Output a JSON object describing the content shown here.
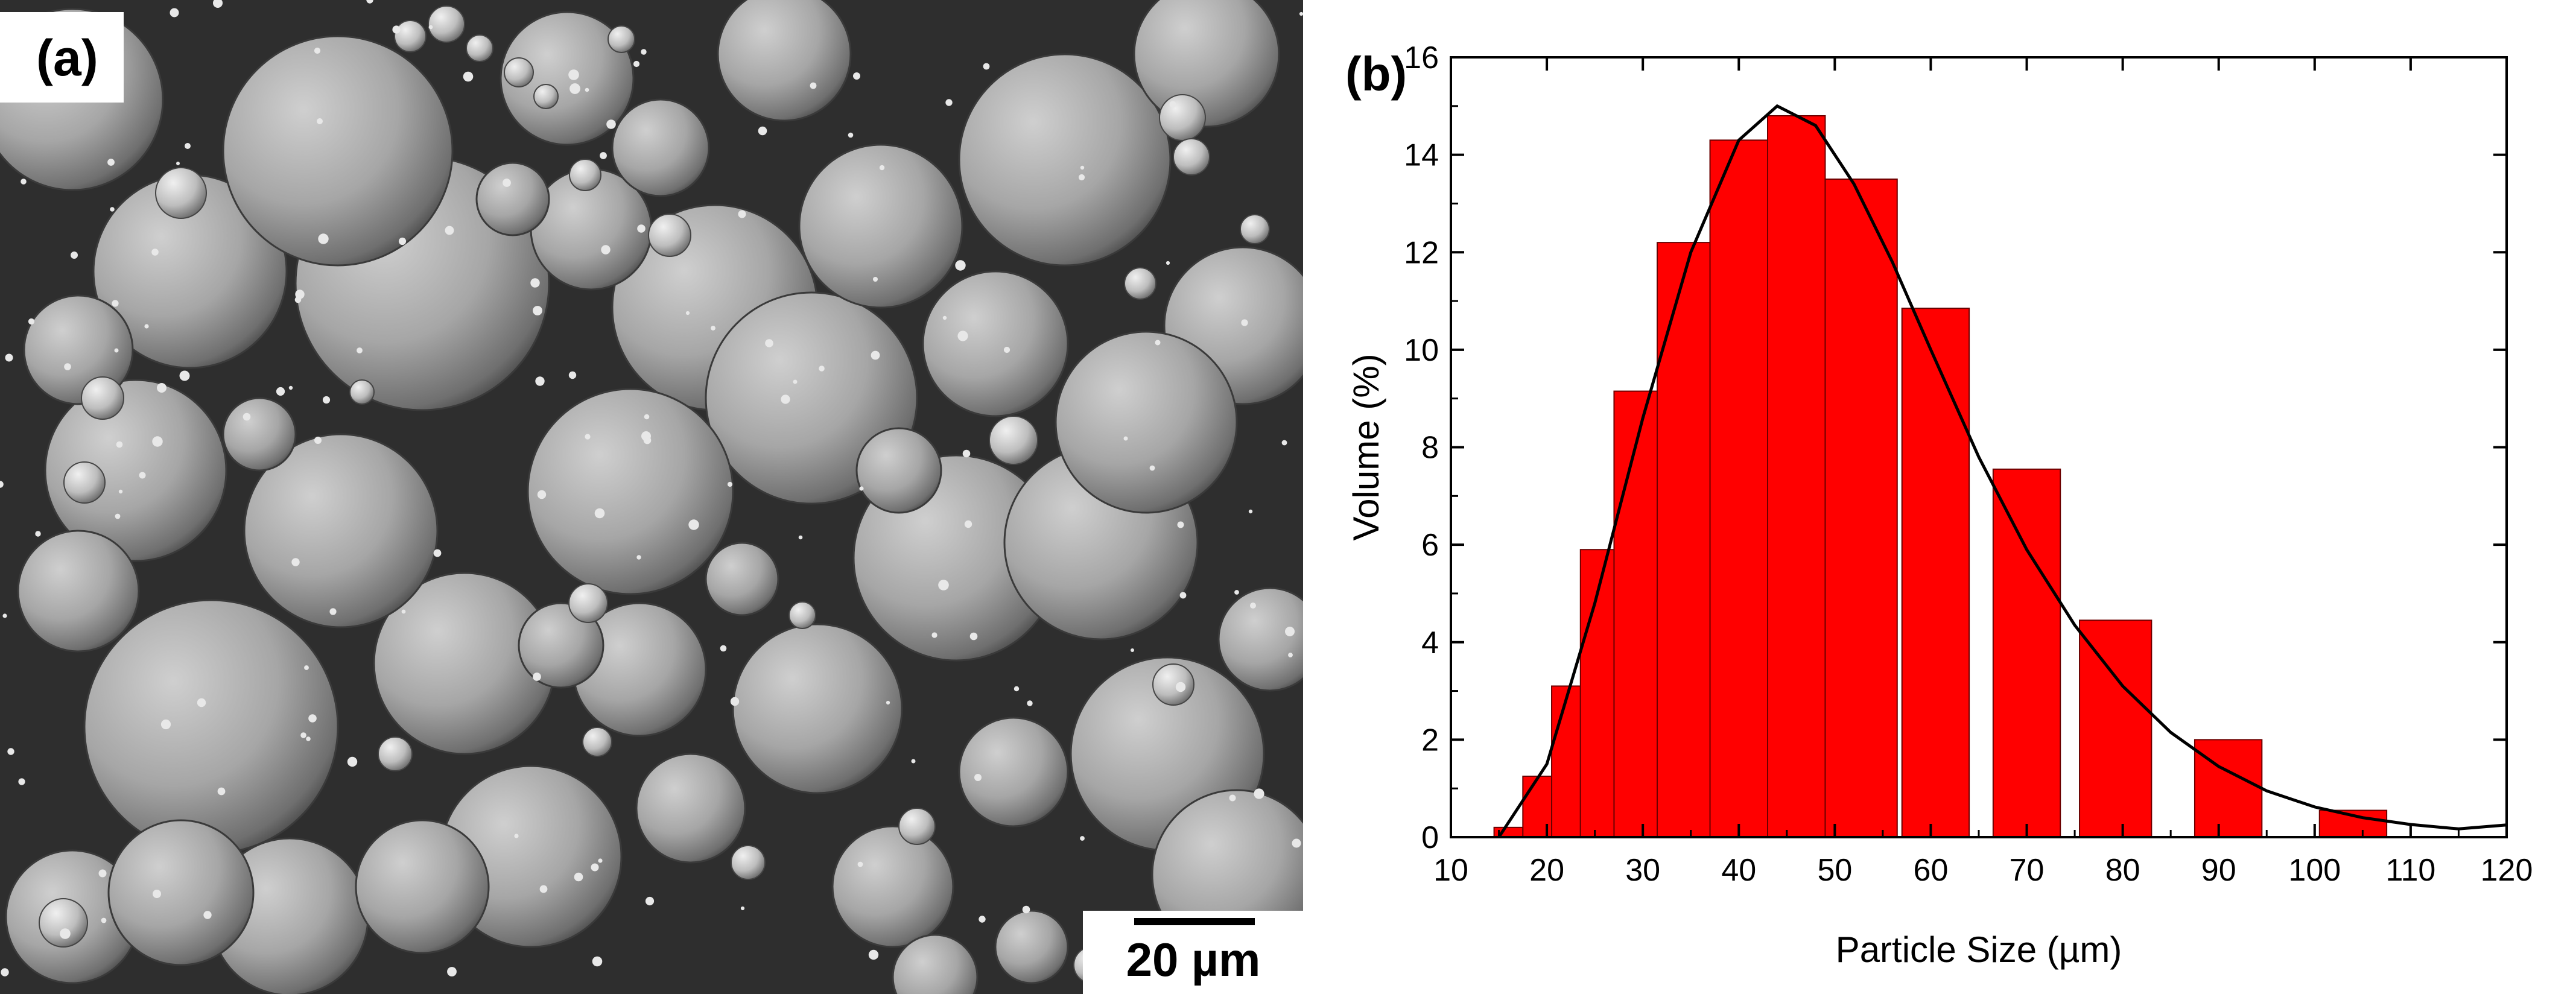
{
  "panel_a": {
    "label": "(a)",
    "scale_bar_label": "20 µm"
  },
  "panel_b": {
    "label": "(b)"
  },
  "colors": {
    "bar_fill": "#ff0000",
    "bar_edge": "#6b0000",
    "curve": "#000000",
    "sem_background": "#2e2e2e"
  },
  "chart_data": {
    "type": "bar",
    "xlabel": "Particle Size (µm)",
    "ylabel": "Volume (%)",
    "xlim": [
      10,
      120
    ],
    "ylim": [
      0,
      16
    ],
    "x_ticks": [
      10,
      20,
      30,
      40,
      50,
      60,
      70,
      80,
      90,
      100,
      110,
      120
    ],
    "y_ticks": [
      0,
      2,
      4,
      6,
      8,
      10,
      12,
      14,
      16
    ],
    "grid": false,
    "legend": "none",
    "bars": [
      {
        "x0": 14.5,
        "x1": 17.5,
        "value": 0.2
      },
      {
        "x0": 17.5,
        "x1": 20.5,
        "value": 1.25
      },
      {
        "x0": 20.5,
        "x1": 23.5,
        "value": 3.1
      },
      {
        "x0": 23.5,
        "x1": 27.0,
        "value": 5.9
      },
      {
        "x0": 27.0,
        "x1": 31.5,
        "value": 9.15
      },
      {
        "x0": 31.5,
        "x1": 37.0,
        "value": 12.2
      },
      {
        "x0": 37.0,
        "x1": 43.0,
        "value": 14.3
      },
      {
        "x0": 43.0,
        "x1": 49.0,
        "value": 14.8
      },
      {
        "x0": 49.0,
        "x1": 56.5,
        "value": 13.5
      },
      {
        "x0": 57.0,
        "x1": 64.0,
        "value": 10.85
      },
      {
        "x0": 66.5,
        "x1": 73.5,
        "value": 7.55
      },
      {
        "x0": 75.5,
        "x1": 83.0,
        "value": 4.45
      },
      {
        "x0": 87.5,
        "x1": 94.5,
        "value": 2.0
      },
      {
        "x0": 100.5,
        "x1": 107.5,
        "value": 0.55
      }
    ],
    "curve": {
      "x": [
        15,
        20,
        25,
        30,
        35,
        40,
        44,
        48,
        52,
        56,
        60,
        65,
        70,
        75,
        80,
        85,
        90,
        95,
        100,
        105,
        110,
        115,
        120
      ],
      "y": [
        0.0,
        1.5,
        4.8,
        8.6,
        12.0,
        14.3,
        15.0,
        14.6,
        13.4,
        11.8,
        10.0,
        7.8,
        5.9,
        4.35,
        3.1,
        2.15,
        1.45,
        0.95,
        0.62,
        0.4,
        0.26,
        0.17,
        0.25
      ]
    }
  }
}
